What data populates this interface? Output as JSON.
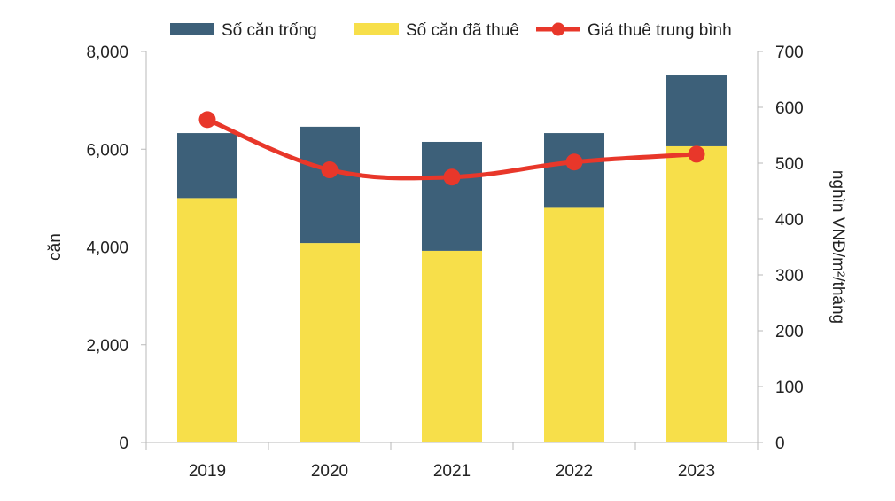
{
  "chart_data": {
    "type": "bar",
    "categories": [
      "2019",
      "2020",
      "2021",
      "2022",
      "2023"
    ],
    "series": [
      {
        "name": "Số căn đã thuê",
        "kind": "bar",
        "axis": "left",
        "values": [
          5000,
          4080,
          3920,
          4800,
          6060
        ]
      },
      {
        "name": "Số căn trống",
        "kind": "bar",
        "axis": "left",
        "values": [
          1330,
          2380,
          2230,
          1530,
          1450
        ]
      },
      {
        "name": "Giá thuê trung bình",
        "kind": "line",
        "axis": "right",
        "values": [
          578,
          488,
          475,
          502,
          516
        ]
      }
    ],
    "legend": [
      {
        "label": "Số căn trống",
        "color": "#3d6079",
        "kind": "box"
      },
      {
        "label": "Số căn đã thuê",
        "color": "#f7df4a",
        "kind": "box"
      },
      {
        "label": "Giá thuê trung bình",
        "color": "#e8372a",
        "kind": "line"
      }
    ],
    "ylabel": "căn",
    "y2label": "nghìn VNĐ/m²/tháng",
    "ylim": [
      0,
      8000
    ],
    "y2lim": [
      0,
      700
    ],
    "yticks": [
      "0",
      "2,000",
      "4,000",
      "6,000",
      "8,000"
    ],
    "y2ticks": [
      "0",
      "100",
      "200",
      "300",
      "400",
      "500",
      "600",
      "700"
    ],
    "grid": false,
    "legend_position": "top"
  },
  "colors": {
    "vacant": "#3d6079",
    "rented": "#f7df4a",
    "price": "#e8372a",
    "axis": "#b8b8b8"
  }
}
